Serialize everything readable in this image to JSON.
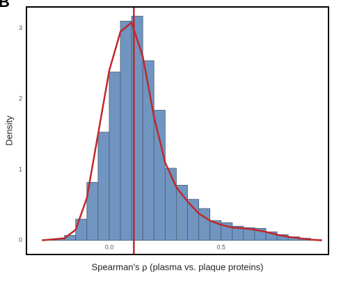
{
  "chart_data": {
    "type": "histogram",
    "panel_label": "B",
    "xlabel": "Spearman's ρ (plasma vs. plaque proteins)",
    "ylabel": "Density",
    "bins": [
      -0.3,
      -0.25,
      -0.2,
      -0.15,
      -0.1,
      -0.05,
      0,
      0.05,
      0.1,
      0.15,
      0.2,
      0.25,
      0.3,
      0.35,
      0.4,
      0.45,
      0.5,
      0.55,
      0.6,
      0.65,
      0.7,
      0.75,
      0.8,
      0.85,
      0.9,
      0.95
    ],
    "values": [
      0.01,
      0.02,
      0.07,
      0.3,
      0.82,
      1.53,
      2.38,
      3.1,
      3.17,
      2.54,
      1.84,
      1.02,
      0.78,
      0.58,
      0.45,
      0.28,
      0.25,
      0.2,
      0.18,
      0.17,
      0.12,
      0.08,
      0.05,
      0.03,
      0.01
    ],
    "color": "#7095c0",
    "edge_color": "#4a5d75",
    "density": {
      "color": "#c0282a",
      "x": [
        -0.3,
        -0.2,
        -0.15,
        -0.1,
        -0.05,
        0,
        0.05,
        0.1,
        0.15,
        0.2,
        0.25,
        0.3,
        0.35,
        0.4,
        0.45,
        0.5,
        0.55,
        0.6,
        0.65,
        0.7,
        0.75,
        0.8,
        0.9,
        0.95
      ],
      "y": [
        0.0,
        0.03,
        0.15,
        0.6,
        1.5,
        2.4,
        2.95,
        3.08,
        2.6,
        1.75,
        1.1,
        0.75,
        0.55,
        0.38,
        0.28,
        0.22,
        0.18,
        0.17,
        0.15,
        0.12,
        0.08,
        0.05,
        0.01,
        0.0
      ]
    },
    "vline": 0.11,
    "xlim": [
      -0.37,
      0.98
    ],
    "ylim": [
      -0.2,
      3.3
    ],
    "xticks": [
      {
        "value": 0,
        "label": "0.0"
      },
      0.5
    ],
    "yticks": [
      0,
      1,
      2,
      3
    ]
  }
}
